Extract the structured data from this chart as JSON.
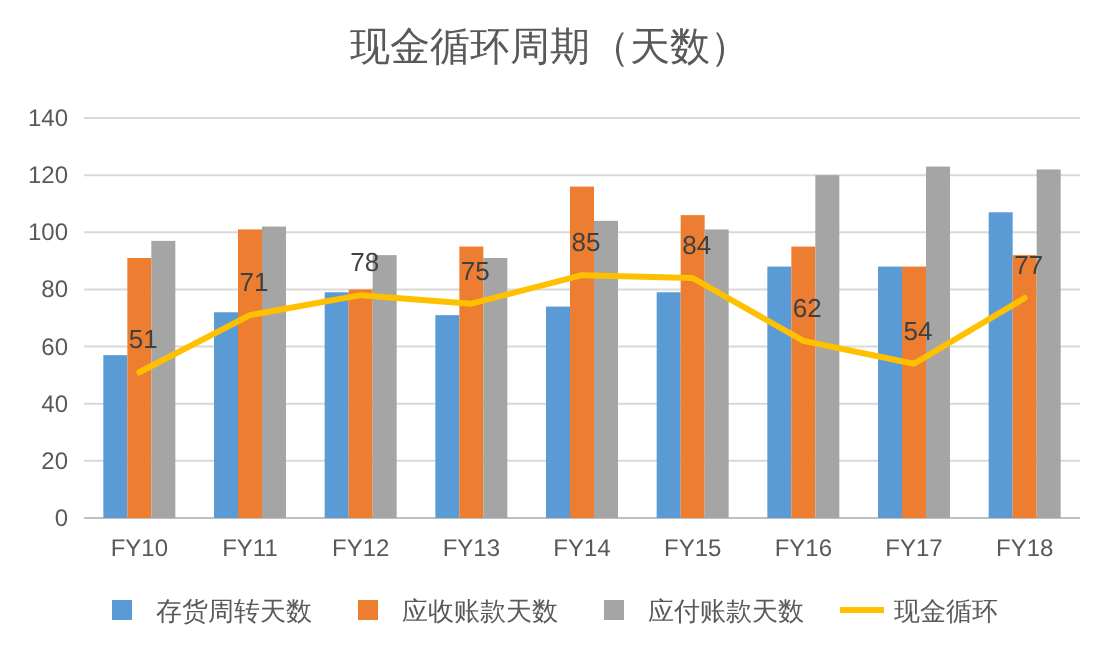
{
  "chart_data": {
    "type": "bar",
    "title": "现金循环周期（天数）",
    "categories": [
      "FY10",
      "FY11",
      "FY12",
      "FY13",
      "FY14",
      "FY15",
      "FY16",
      "FY17",
      "FY18"
    ],
    "series": [
      {
        "name": "存货周转天数",
        "color": "#5b9bd5",
        "values": [
          57,
          72,
          79,
          71,
          74,
          79,
          88,
          88,
          107
        ]
      },
      {
        "name": "应收账款天数",
        "color": "#ed7d31",
        "values": [
          91,
          101,
          80,
          95,
          116,
          106,
          95,
          88,
          92
        ]
      },
      {
        "name": "应付账款天数",
        "color": "#a5a5a5",
        "values": [
          97,
          102,
          92,
          91,
          104,
          101,
          120,
          123,
          122
        ]
      },
      {
        "name": "现金循环",
        "type": "line",
        "color": "#ffc000",
        "values": [
          51,
          71,
          78,
          75,
          85,
          84,
          62,
          54,
          77
        ],
        "value_labels": [
          "51",
          "71",
          "78",
          "75",
          "85",
          "84",
          "62",
          "54",
          "77"
        ]
      }
    ],
    "ylim": [
      0,
      140
    ],
    "yticks": [
      0,
      20,
      40,
      60,
      80,
      100,
      120,
      140
    ],
    "grid": "y",
    "legend": "bottom"
  }
}
